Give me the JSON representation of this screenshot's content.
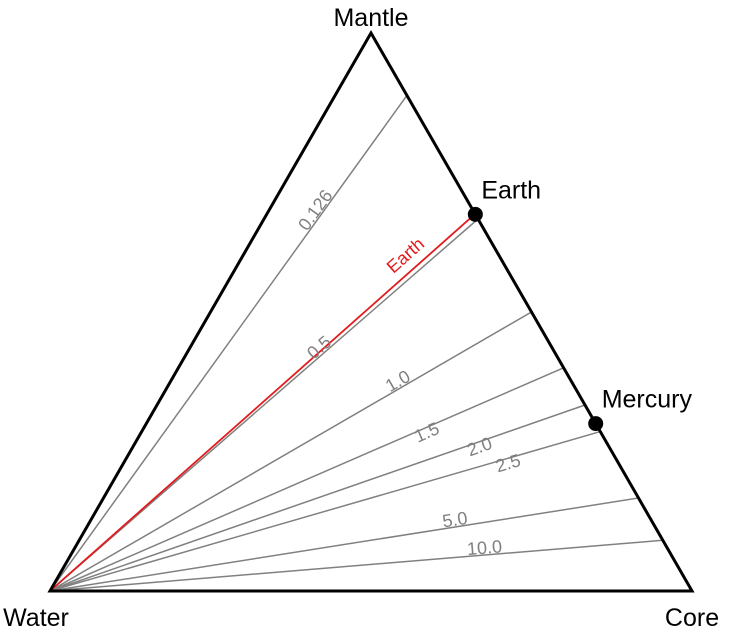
{
  "chart_data": {
    "type": "ternary",
    "vertices": {
      "top": "Mantle",
      "bottom_left": "Water",
      "bottom_right": "Core"
    },
    "colors": {
      "frame": "#000000",
      "line": "#808080",
      "highlight": "#e41a1c",
      "point": "#000000"
    },
    "ratio_lines": [
      {
        "label": "0.126",
        "core_over_mantle": 0.126
      },
      {
        "label": "0.5",
        "core_over_mantle": 0.5
      },
      {
        "label": "1.0",
        "core_over_mantle": 1.0
      },
      {
        "label": "1.5",
        "core_over_mantle": 1.5
      },
      {
        "label": "2.0",
        "core_over_mantle": 2.0
      },
      {
        "label": "2.5",
        "core_over_mantle": 2.5
      },
      {
        "label": "5.0",
        "core_over_mantle": 5.0
      },
      {
        "label": "10.0",
        "core_over_mantle": 10.0
      }
    ],
    "highlight_line": {
      "label": "Earth",
      "core_over_mantle": 0.48
    },
    "points": [
      {
        "label": "Earth",
        "mantle": 0.675,
        "core": 0.325,
        "water": 0
      },
      {
        "label": "Mercury",
        "mantle": 0.3,
        "core": 0.7,
        "water": 0
      }
    ]
  }
}
